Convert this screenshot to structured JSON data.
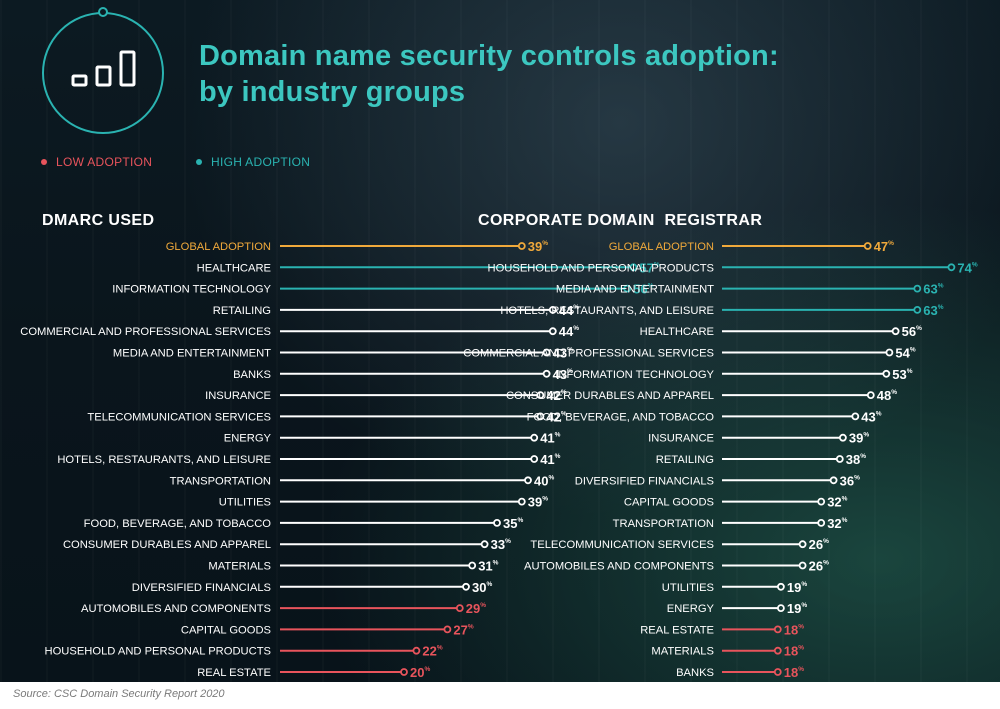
{
  "title_line1": "Domain name security controls adoption:",
  "title_line2": "by industry groups",
  "legend": {
    "low": "LOW ADOPTION",
    "high": "HIGH ADOPTION"
  },
  "colors": {
    "low": "#e8545c",
    "high": "#2ab3b1",
    "global": "#f0a93b",
    "normal": "#ffffff",
    "title": "#3cc7c0"
  },
  "logo_icon": "bar-chart-icon",
  "value_suffix": "%",
  "source": "Source: CSC Domain Security Report 2020",
  "chart_data": [
    {
      "type": "bar",
      "title": "DMARC USED",
      "value_unit": "%",
      "categories": [
        "GLOBAL ADOPTION",
        "HEALTHCARE",
        "INFORMATION TECHNOLOGY",
        "RETAILING",
        "COMMERCIAL AND PROFESSIONAL SERVICES",
        "MEDIA AND ENTERTAINMENT",
        "BANKS",
        "INSURANCE",
        "TELECOMMUNICATION SERVICES",
        "ENERGY",
        "HOTELS, RESTAURANTS, AND LEISURE",
        "TRANSPORTATION",
        "UTILITIES",
        "FOOD, BEVERAGE, AND TOBACCO",
        "CONSUMER DURABLES AND APPAREL",
        "MATERIALS",
        "DIVERSIFIED FINANCIALS",
        "AUTOMOBILES AND COMPONENTS",
        "CAPITAL GOODS",
        "HOUSEHOLD AND PERSONAL PRODUCTS",
        "REAL ESTATE"
      ],
      "values": [
        39,
        57,
        56,
        44,
        44,
        43,
        43,
        42,
        42,
        41,
        41,
        40,
        39,
        35,
        33,
        31,
        30,
        29,
        27,
        22,
        20
      ],
      "groups": [
        "global",
        "high",
        "high",
        "normal",
        "normal",
        "normal",
        "normal",
        "normal",
        "normal",
        "normal",
        "normal",
        "normal",
        "normal",
        "normal",
        "normal",
        "normal",
        "normal",
        "low",
        "low",
        "low",
        "low"
      ]
    },
    {
      "type": "bar",
      "title": "CORPORATE DOMAIN  REGISTRAR",
      "value_unit": "%",
      "categories": [
        "GLOBAL ADOPTION",
        "HOUSEHOLD AND PERSONAL PRODUCTS",
        "MEDIA AND ENTERTAINMENT",
        "HOTELS, RESTAURANTS, AND LEISURE",
        "HEALTHCARE",
        "COMMERCIAL AND PROFESSIONAL SERVICES",
        "INFORMATION TECHNOLOGY",
        "CONSUMER DURABLES AND APPAREL",
        "FOOD, BEVERAGE, AND TOBACCO",
        "INSURANCE",
        "RETAILING",
        "DIVERSIFIED FINANCIALS",
        "CAPITAL GOODS",
        "TRANSPORTATION",
        "TELECOMMUNICATION SERVICES",
        "AUTOMOBILES AND COMPONENTS",
        "UTILITIES",
        "ENERGY",
        "REAL ESTATE",
        "MATERIALS",
        "BANKS"
      ],
      "values": [
        47,
        74,
        63,
        63,
        56,
        54,
        53,
        48,
        43,
        39,
        38,
        36,
        32,
        32,
        26,
        26,
        19,
        19,
        18,
        18,
        18
      ],
      "groups": [
        "global",
        "high",
        "high",
        "high",
        "normal",
        "normal",
        "normal",
        "normal",
        "normal",
        "normal",
        "normal",
        "normal",
        "normal",
        "normal",
        "normal",
        "normal",
        "normal",
        "normal",
        "low",
        "low",
        "low"
      ]
    }
  ]
}
